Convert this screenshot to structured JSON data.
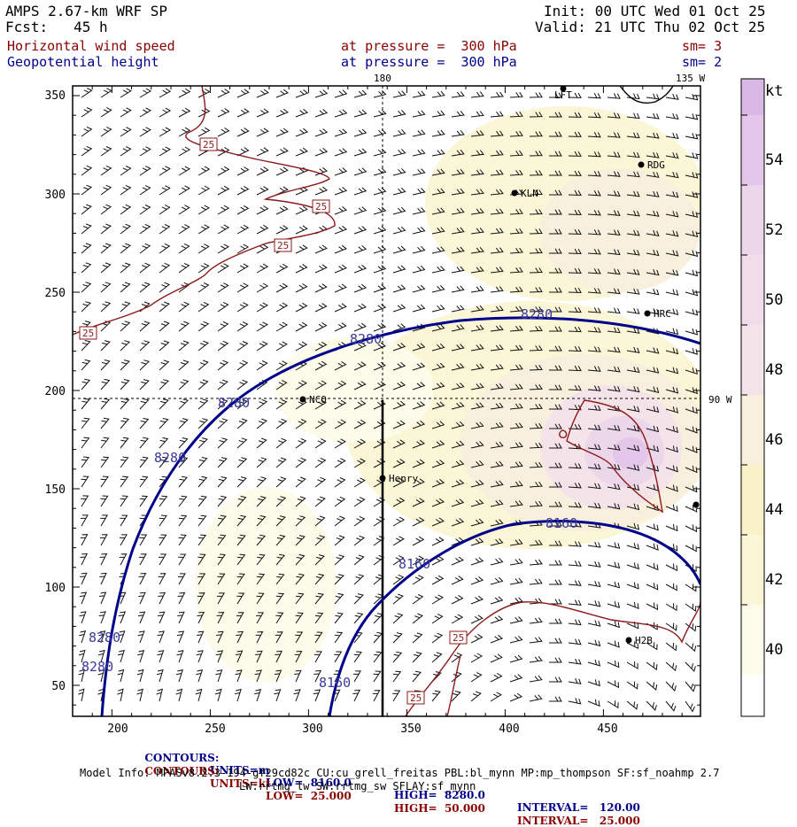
{
  "header": {
    "title": "AMPS 2.67-km WRF SP",
    "fcst": "Fcst:   45 h",
    "init": "Init: 00 UTC Wed 01 Oct 25",
    "valid": "Valid: 21 UTC Thu 02 Oct 25",
    "field1_name": "Horizontal wind speed",
    "field1_level": "at pressure =  300 hPa",
    "field1_sm": "sm= 3",
    "field2_name": "Geopotential height",
    "field2_level": "at pressure =  300 hPa",
    "field2_sm": "sm= 2"
  },
  "map": {
    "lon_labels": [
      "180",
      "135 W",
      "90 W"
    ],
    "stations": [
      "LFT",
      "RDG",
      "KLN",
      "HRC",
      "NCO",
      "Henry",
      "H2B"
    ],
    "contour_labels_height": [
      "8280",
      "8280",
      "8280",
      "8280",
      "8280",
      "8280",
      "8280",
      "8160",
      "8160",
      "8160"
    ],
    "contour_labels_wind": [
      "25",
      "25",
      "25",
      "25",
      "25",
      "25"
    ],
    "x_ticks": [
      "200",
      "250",
      "300",
      "350",
      "400",
      "450"
    ],
    "y_ticks": [
      "350",
      "300",
      "250",
      "200",
      "150",
      "100",
      "50"
    ]
  },
  "colorbar": {
    "unit": "kt",
    "levels": [
      "54",
      "52",
      "50",
      "48",
      "46",
      "44",
      "42",
      "40"
    ],
    "colors": [
      "#d9b8e6",
      "#e3c6e9",
      "#ecd6ea",
      "#f4e4ea",
      "#f8efdc",
      "#f9f2c8",
      "#fbf6d6",
      "#fdfbea",
      "#ffffff"
    ]
  },
  "footer": {
    "c1_label": "CONTOURS:",
    "c1_units": "UNITS=m",
    "c1_low": "LOW=  8160.0",
    "c1_high": "HIGH=  8280.0",
    "c1_interval": "INTERVAL=   120.00",
    "c2_label": "CONTOURS:",
    "c2_units": "UNITS=kt",
    "c2_low": "LOW=  25.000",
    "c2_high": "HIGH=  50.000",
    "c2_interval": "INTERVAL=   25.000",
    "model_line1": "Model Info: MPASv8.2.3-194-gf29cd82c CU:cu_grell_freitas PBL:bl_mynn MP:mp_thompson SF:sf_noahmp 2.7",
    "model_line2": "LW:rrtmg_lw SW:rrtmg_sw SFLAY:sf_mynn"
  }
}
